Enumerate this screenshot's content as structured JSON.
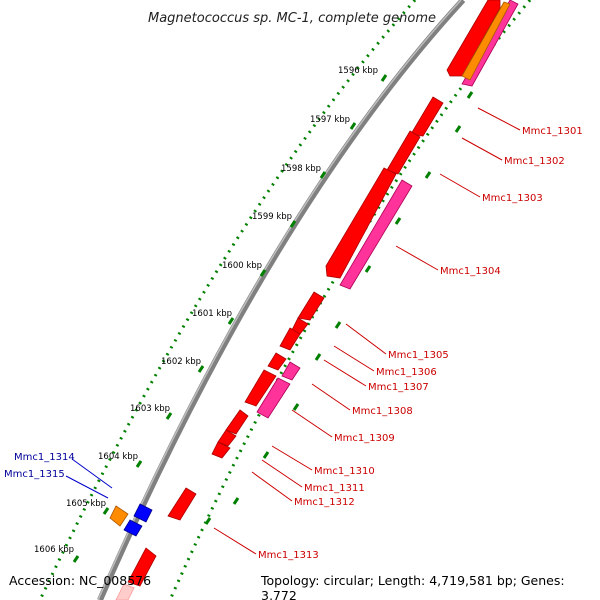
{
  "title": "Magnetococcus sp. MC-1, complete genome",
  "footer": {
    "accession": "Accession: NC_008576",
    "topology": "Topology: circular; Length: 4,719,581 bp; Genes: 3,772"
  },
  "ticks": [
    "1596 kbp",
    "1597 kbp",
    "1598 kbp",
    "1599 kbp",
    "1600 kbp",
    "1601 kbp",
    "1602 kbp",
    "1603 kbp",
    "1604 kbp",
    "1605 kbp",
    "1606 kbp"
  ],
  "genes_right": [
    "Mmc1_1301",
    "Mmc1_1302",
    "Mmc1_1303",
    "Mmc1_1304",
    "Mmc1_1305",
    "Mmc1_1306",
    "Mmc1_1307",
    "Mmc1_1308",
    "Mmc1_1309",
    "Mmc1_1310",
    "Mmc1_1311",
    "Mmc1_1312",
    "Mmc1_1313"
  ],
  "genes_left": [
    "Mmc1_1314",
    "Mmc1_1315"
  ],
  "colors": {
    "cds": "#ff0000",
    "pink": "#ff3399",
    "orange": "#ff8c00",
    "blue": "#0000ff",
    "label_red": "#cc0000",
    "label_blue": "#000099",
    "ticks": "#008000",
    "backbone": "#808080"
  }
}
